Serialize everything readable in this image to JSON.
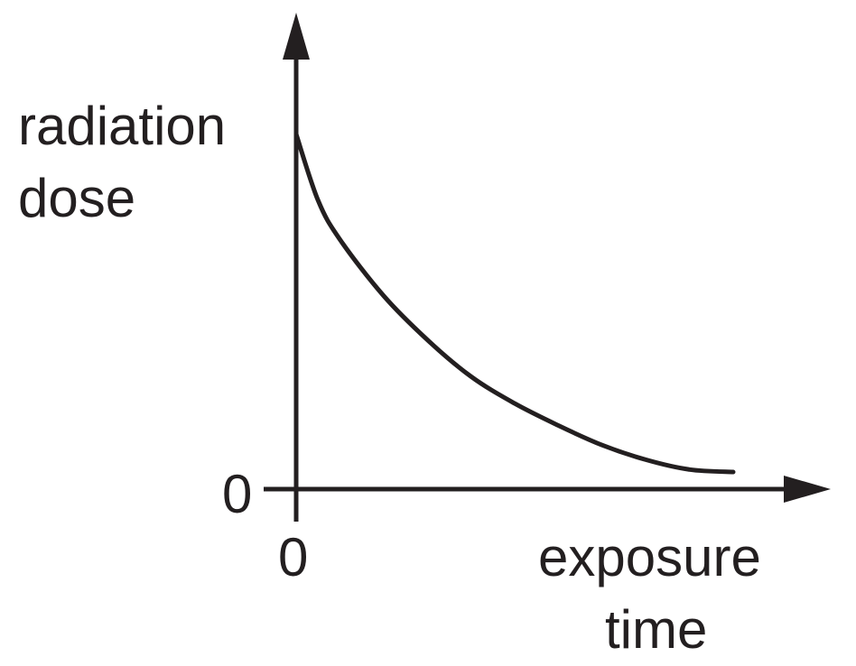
{
  "chart_data": {
    "type": "line",
    "title": "",
    "ylabel_lines": [
      "radiation",
      "dose"
    ],
    "xlabel_lines": [
      "exposure",
      "time"
    ],
    "x_ticks": [
      "0"
    ],
    "y_ticks": [
      "0"
    ],
    "xlim": [
      0,
      10
    ],
    "ylim": [
      0,
      16
    ],
    "grid": false,
    "legend": "none",
    "curve_description": "decreasing, concave up (decay)",
    "series": [
      {
        "x": [
          0,
          0.5,
          1,
          2,
          3,
          4,
          5,
          6,
          7,
          8,
          9,
          10
        ],
        "y": [
          14.5,
          11.8,
          10.2,
          7.9,
          6.1,
          4.6,
          3.5,
          2.6,
          1.8,
          1.2,
          0.8,
          0.7
        ]
      }
    ],
    "colors": {
      "ink": "#231f20",
      "background": "#ffffff"
    }
  }
}
